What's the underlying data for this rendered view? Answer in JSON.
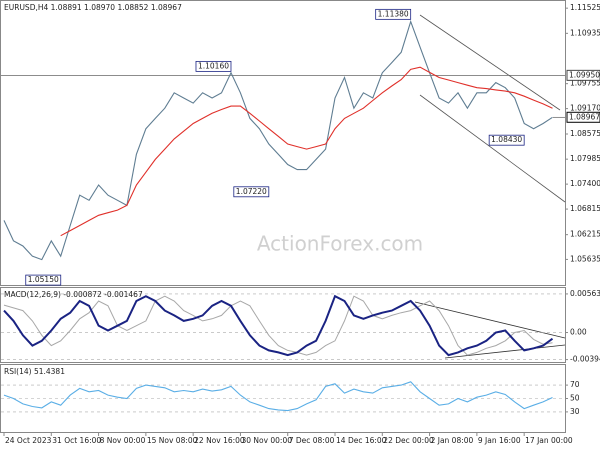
{
  "chart_data": [
    {
      "type": "line",
      "title": "EURUSD,H4  1.08891 1.08970 1.08852 1.08967",
      "watermark": "ActionForex.com",
      "xlim": [
        0,
        59
      ],
      "ylim": [
        1.05035,
        1.11693
      ],
      "yticks": [
        1.11525,
        {
          "value": 1.10935,
          "label": "1.10935"
        },
        1.09755,
        {
          "value": 1.0917,
          "label": "1.09170"
        },
        1.08575,
        1.07985,
        {
          "value": 1.074,
          "label": "1.07400"
        },
        1.06815,
        1.06215,
        1.05635
      ],
      "hline": {
        "value": 1.0995,
        "label": "1.09950"
      },
      "last_price": {
        "value": 1.08967,
        "label": "1.08967"
      },
      "annotations": [
        {
          "x": 43,
          "value": 1.1138,
          "label": "1.11380"
        },
        {
          "x": 24,
          "value": 1.1016,
          "label": "1.10160"
        },
        {
          "x": 28,
          "value": 1.0722,
          "label": "1.07220"
        },
        {
          "x": 6,
          "value": 1.0515,
          "label": "1.05150"
        },
        {
          "x": 55,
          "value": 1.0843,
          "label": "1.08430"
        }
      ],
      "series": [
        {
          "color": "#5f7d92",
          "values": [
            1.0655,
            1.0607,
            1.0595,
            1.0571,
            1.0563,
            1.0607,
            1.0571,
            1.0643,
            1.0714,
            1.0702,
            1.0738,
            1.0714,
            1.0702,
            1.069,
            1.081,
            1.087,
            1.0894,
            1.0918,
            1.0954,
            1.0942,
            1.093,
            1.0954,
            1.0942,
            1.0954,
            1.1001,
            1.0954,
            1.0894,
            1.087,
            1.0834,
            1.081,
            1.0786,
            1.0774,
            1.0774,
            1.0798,
            1.0822,
            1.0942,
            1.099,
            1.0918,
            1.0954,
            1.0942,
            1.1001,
            1.1025,
            1.1049,
            1.1121,
            1.1061,
            1.1001,
            1.0942,
            1.093,
            1.0954,
            1.0918,
            1.0954,
            1.0954,
            1.0978,
            1.0966,
            1.0942,
            1.0882,
            1.087,
            1.0882,
            1.08967
          ]
        },
        {
          "color": "#e0302a",
          "values": [
            null,
            null,
            null,
            null,
            null,
            null,
            1.0619,
            1.0631,
            1.0643,
            1.0655,
            1.0667,
            1.0673,
            1.0679,
            1.069,
            1.0738,
            1.0768,
            1.0798,
            1.0822,
            1.0846,
            1.0864,
            1.0882,
            1.0894,
            1.0906,
            1.0915,
            1.0923,
            1.0923,
            1.0906,
            1.0888,
            1.087,
            1.0852,
            1.0834,
            1.0828,
            1.0822,
            1.0828,
            1.0834,
            1.087,
            1.0894,
            1.0906,
            1.0918,
            1.0936,
            1.0954,
            1.097,
            1.0985,
            1.1009,
            1.1014,
            1.1002,
            1.099,
            1.0984,
            1.0978,
            1.0972,
            1.0966,
            1.0964,
            1.0961,
            1.0958,
            1.0954,
            1.0946,
            1.0937,
            1.0928,
            1.0918
          ]
        }
      ]
    },
    {
      "type": "line",
      "title": "MACD(12,26,9) -0.000872 -0.001467",
      "xlim": [
        0,
        59
      ],
      "ylim": [
        -0.0043,
        0.0065
      ],
      "grid": true,
      "yticks": [
        0.005635,
        {
          "value": 0,
          "label": "0.00"
        },
        -0.003949
      ],
      "series": [
        {
          "color": "#a8a8a8",
          "width": 1,
          "values": [
            0.004,
            0.0036,
            0.0032,
            0.0017,
            -0.0004,
            -0.0019,
            -0.0012,
            0.0003,
            0.002,
            0.0029,
            0.0046,
            0.0039,
            0.001,
            0.0003,
            0.001,
            0.0017,
            0.0046,
            0.0053,
            0.0046,
            0.0032,
            0.0025,
            0.0017,
            0.002,
            0.0025,
            0.0039,
            0.0046,
            0.0039,
            0.0017,
            -0.0004,
            -0.0019,
            -0.0026,
            -0.0029,
            -0.0033,
            -0.0029,
            -0.0019,
            -0.0012,
            0.0017,
            0.0053,
            0.0046,
            0.0025,
            0.002,
            0.0025,
            0.0029,
            0.0032,
            0.0039,
            0.0046,
            0.0032,
            0.001,
            -0.0019,
            -0.0033,
            -0.0029,
            -0.0023,
            -0.0019,
            -0.0012,
            0,
            0.0003,
            -0.001,
            -0.0017,
            -0.0015
          ]
        },
        {
          "color": "#1a2383",
          "width": 2,
          "values": [
            0.0032,
            0.0017,
            -0.0004,
            -0.0019,
            -0.0012,
            0.0003,
            0.002,
            0.0029,
            0.0046,
            0.0039,
            0.001,
            0.0003,
            0.001,
            0.0017,
            0.0046,
            0.0053,
            0.0046,
            0.0032,
            0.0025,
            0.0017,
            0.002,
            0.0025,
            0.0039,
            0.0046,
            0.0039,
            0.0017,
            -0.0004,
            -0.0019,
            -0.0026,
            -0.0029,
            -0.0033,
            -0.0029,
            -0.0019,
            -0.0012,
            0.0017,
            0.0053,
            0.0046,
            0.0025,
            0.002,
            0.0025,
            0.0029,
            0.0032,
            0.0039,
            0.0046,
            0.0032,
            0.001,
            -0.0019,
            -0.0033,
            -0.0029,
            -0.0023,
            -0.0019,
            -0.0012,
            0,
            0.0003,
            -0.0012,
            -0.0026,
            -0.0023,
            -0.0019,
            -0.0009
          ]
        }
      ]
    },
    {
      "type": "line",
      "title": "RSI(14) 51.4381",
      "xlim": [
        0,
        59
      ],
      "ylim": [
        0,
        100
      ],
      "grid": true,
      "yticks": [
        70,
        50,
        30
      ],
      "xticks": [
        {
          "value": 0,
          "label": "24 Oct 2023"
        },
        {
          "value": 5,
          "label": "31 Oct 16:00"
        },
        {
          "value": 10,
          "label": "8 Nov 00:00"
        },
        {
          "value": 15,
          "label": "15 Nov 08:00"
        },
        {
          "value": 20,
          "label": "22 Nov 16:00"
        },
        {
          "value": 25,
          "label": "30 Nov 00:00"
        },
        {
          "value": 30,
          "label": "7 Dec 08:00"
        },
        {
          "value": 35,
          "label": "14 Dec 16:00"
        },
        {
          "value": 40,
          "label": "22 Dec 00:00"
        },
        {
          "value": 45,
          "label": "2 Jan 08:00"
        },
        {
          "value": 50,
          "label": "9 Jan 16:00"
        },
        {
          "value": 55,
          "label": "17 Jan 00:00"
        }
      ],
      "series": [
        {
          "color": "#5aaee6",
          "values": [
            55,
            50,
            42,
            38,
            36,
            45,
            40,
            55,
            65,
            60,
            62,
            55,
            52,
            50,
            65,
            70,
            68,
            66,
            60,
            62,
            60,
            64,
            61,
            63,
            68,
            55,
            45,
            40,
            35,
            33,
            32,
            35,
            42,
            48,
            68,
            72,
            58,
            64,
            60,
            58,
            66,
            68,
            70,
            75,
            60,
            50,
            40,
            42,
            50,
            45,
            52,
            55,
            60,
            56,
            45,
            35,
            40,
            45,
            51.4381
          ]
        }
      ]
    }
  ]
}
